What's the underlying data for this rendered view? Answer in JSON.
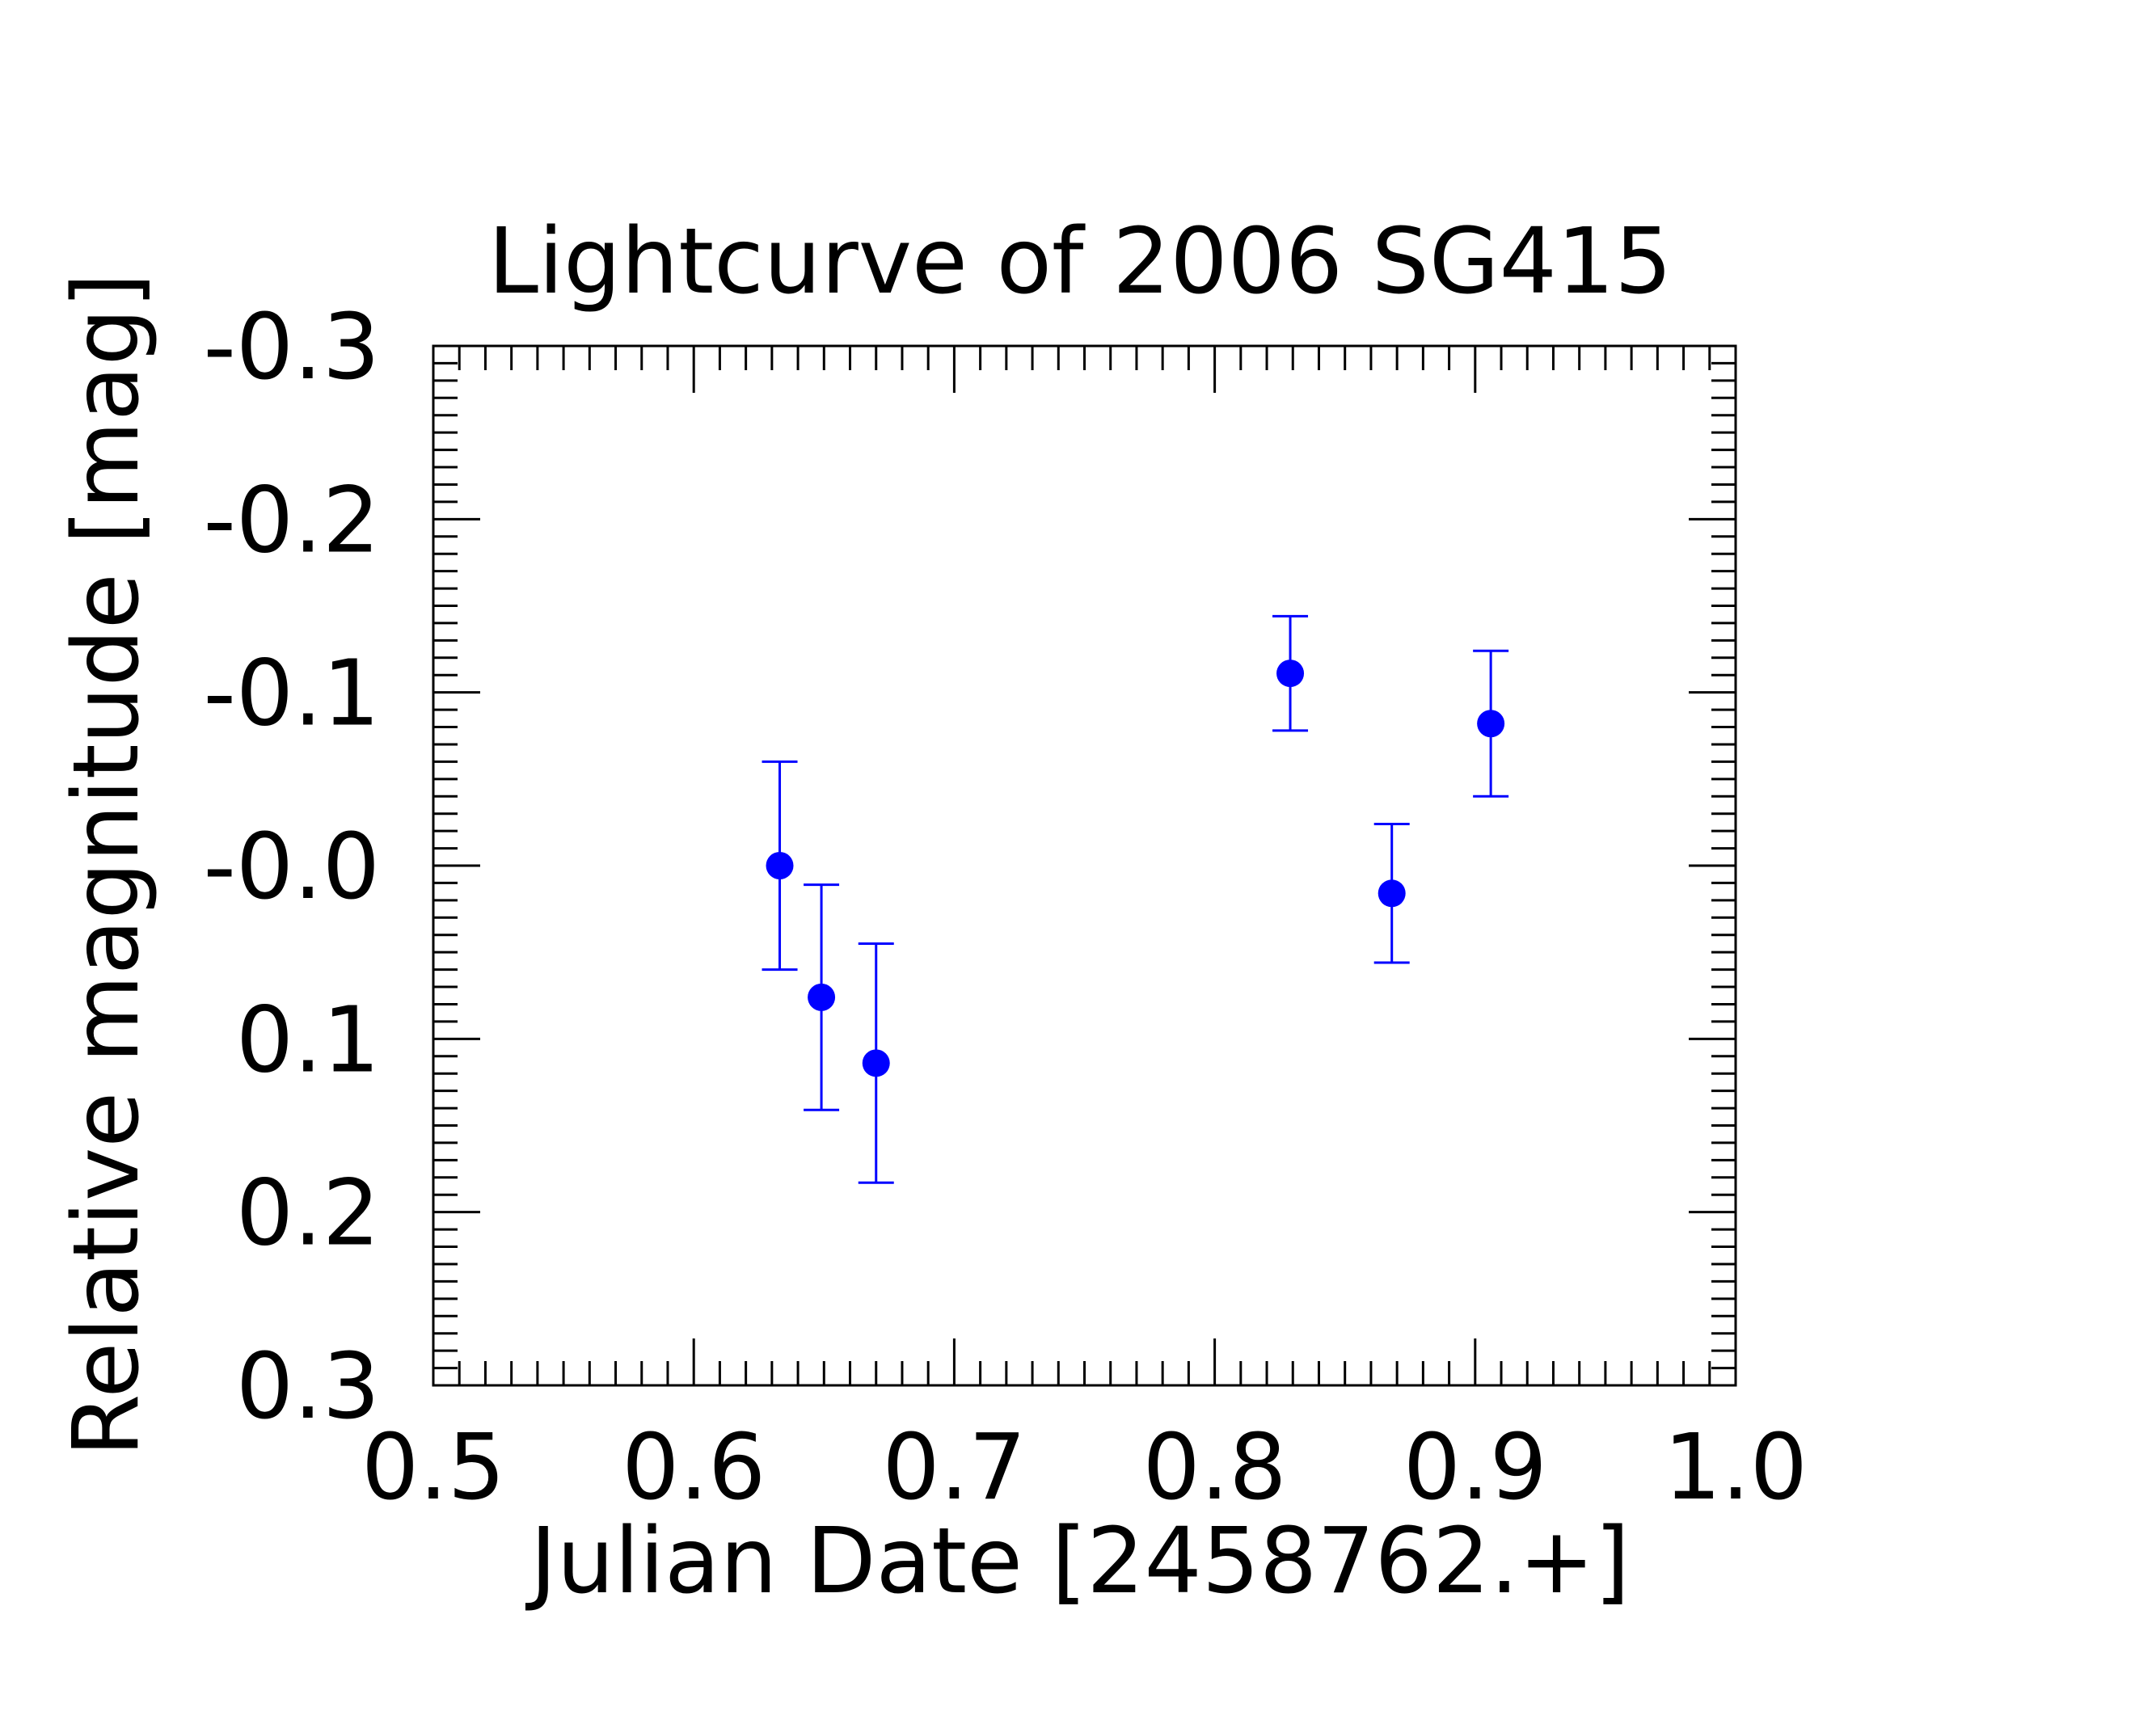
{
  "chart_data": {
    "type": "scatter",
    "title": "Lightcurve of 2006 SG415",
    "xlabel": "Julian Date [2458762.+]",
    "ylabel": "Relative magnitude [mag]",
    "xlim": [
      0.5,
      1.0
    ],
    "ylim": [
      0.3,
      -0.3
    ],
    "y_inverted": true,
    "x_ticks": [
      0.5,
      0.6,
      0.7,
      0.8,
      0.9,
      1.0
    ],
    "x_tick_labels": [
      "0.5",
      "0.6",
      "0.7",
      "0.8",
      "0.9",
      "1.0"
    ],
    "y_ticks": [
      -0.3,
      -0.2,
      -0.1,
      0.0,
      0.1,
      0.2,
      0.3
    ],
    "y_tick_labels": [
      "-0.3",
      "-0.2",
      "-0.1",
      "-0.0",
      "0.1",
      "0.2",
      "0.3"
    ],
    "x_minor_step": 0.01,
    "y_minor_step": 0.01,
    "grid": false,
    "legend": "none",
    "marker_color": "#0000ff",
    "series": [
      {
        "x": [
          0.633,
          0.649,
          0.67,
          0.829,
          0.868,
          0.906
        ],
        "y": [
          0.0,
          0.076,
          0.114,
          -0.111,
          0.016,
          -0.082
        ],
        "yerr": [
          0.06,
          0.065,
          0.069,
          0.033,
          0.04,
          0.042
        ]
      }
    ]
  }
}
